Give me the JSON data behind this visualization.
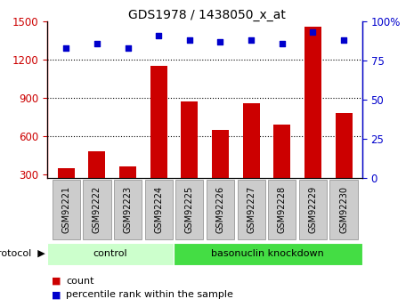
{
  "title": "GDS1978 / 1438050_x_at",
  "samples": [
    "GSM92221",
    "GSM92222",
    "GSM92223",
    "GSM92224",
    "GSM92225",
    "GSM92226",
    "GSM92227",
    "GSM92228",
    "GSM92229",
    "GSM92230"
  ],
  "counts": [
    350,
    480,
    360,
    1150,
    870,
    650,
    860,
    690,
    1460,
    780
  ],
  "percentile_ranks": [
    83,
    86,
    83,
    91,
    88,
    87,
    88,
    86,
    93,
    88
  ],
  "ylim_left": [
    270,
    1500
  ],
  "ylim_right": [
    0,
    100
  ],
  "yticks_left": [
    300,
    600,
    900,
    1200,
    1500
  ],
  "yticks_right": [
    0,
    25,
    50,
    75,
    100
  ],
  "bar_color": "#cc0000",
  "dot_color": "#0000cc",
  "control_color": "#ccffcc",
  "knockdown_color": "#44dd44",
  "protocol_label": "protocol",
  "legend_items": [
    {
      "label": "count",
      "color": "#cc0000"
    },
    {
      "label": "percentile rank within the sample",
      "color": "#0000cc"
    }
  ],
  "tick_bg_color": "#cccccc",
  "group_border_color": "#888888",
  "gridline_ticks": [
    600,
    900,
    1200
  ]
}
